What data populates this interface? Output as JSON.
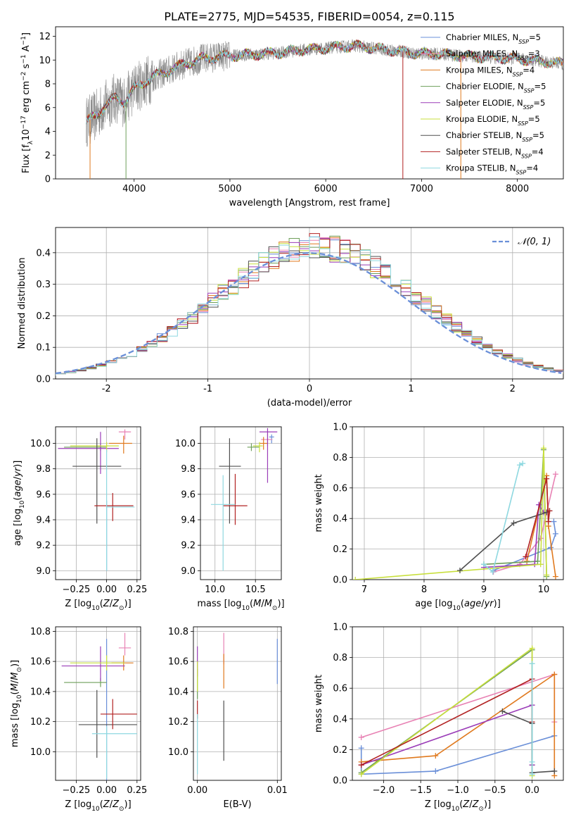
{
  "figure_title": "PLATE=2775, MJD=54535, FIBERID=0054, z=0.115",
  "colors": {
    "chabrier_miles": "#6a8fd8",
    "salpeter_miles": "#e882b4",
    "kroupa_miles": "#e07a1f",
    "chabrier_elodie": "#6e9f5a",
    "salpeter_elodie": "#9b3db8",
    "kroupa_elodie": "#c8df3c",
    "chabrier_stelib": "#505050",
    "salpeter_stelib": "#b22222",
    "kroupa_stelib": "#8ed8e0",
    "gaussian": "#6a8fd8",
    "grid": "#b0b0b0"
  },
  "chart_data": [
    {
      "id": "spectrum",
      "type": "line",
      "title": "PLATE=2775, MJD=54535, FIBERID=0054, z=0.115",
      "xlabel": "wavelength [Angstrom, rest frame]",
      "ylabel": "Flux [f_λ 10^-17 erg cm^-2 s^-1 A^-1]",
      "xlim": [
        3180,
        8480
      ],
      "ylim": [
        0,
        12.8
      ],
      "xticks": [
        4000,
        5000,
        6000,
        7000,
        8000
      ],
      "yticks": [
        0,
        2,
        4,
        6,
        8,
        10,
        12
      ],
      "grid": false,
      "legend_position": "right",
      "data_range": [
        3500,
        8480
      ],
      "continuum_knots": {
        "x": [
          3500,
          3600,
          3700,
          3800,
          3900,
          4000,
          4100,
          4200,
          4300,
          4500,
          4700,
          4900,
          5100,
          5300,
          5500,
          5700,
          6000,
          6300,
          6600,
          6900,
          7200,
          7500,
          8000,
          8480
        ],
        "y": [
          4.8,
          5.3,
          6.2,
          6.8,
          6.5,
          7.6,
          8.1,
          8.6,
          8.9,
          9.6,
          10.1,
          10.3,
          10.4,
          10.5,
          10.6,
          10.8,
          11.0,
          11.2,
          10.9,
          10.6,
          10.5,
          10.3,
          10.1,
          9.7
        ]
      },
      "legend": [
        {
          "label": "Chabrier MILES, N",
          "sub": "SSP",
          "suffix": "=5",
          "color": "#6a8fd8"
        },
        {
          "label": "Salpeter MILES, N",
          "sub": "SSP",
          "suffix": "=3",
          "color": "#e882b4"
        },
        {
          "label": "Kroupa MILES, N",
          "sub": "SSP",
          "suffix": "=4",
          "color": "#e07a1f"
        },
        {
          "label": "Chabrier ELODIE, N",
          "sub": "SSP",
          "suffix": "=5",
          "color": "#6e9f5a"
        },
        {
          "label": "Salpeter ELODIE, N",
          "sub": "SSP",
          "suffix": "=5",
          "color": "#9b3db8"
        },
        {
          "label": "Kroupa ELODIE, N",
          "sub": "SSP",
          "suffix": "=5",
          "color": "#c8df3c"
        },
        {
          "label": "Chabrier STELIB, N",
          "sub": "SSP",
          "suffix": "=5",
          "color": "#505050"
        },
        {
          "label": "Salpeter STELIB, N",
          "sub": "SSP",
          "suffix": "=4",
          "color": "#b22222"
        },
        {
          "label": "Kroupa STELIB, N",
          "sub": "SSP",
          "suffix": "=4",
          "color": "#8ed8e0"
        }
      ]
    },
    {
      "id": "residuals",
      "type": "histogram",
      "xlabel": "(data-model)/error",
      "ylabel": "Normed distribution",
      "xlim": [
        -2.5,
        2.5
      ],
      "ylim": [
        0,
        0.48
      ],
      "xticks": [
        -2,
        -1,
        0,
        1,
        2
      ],
      "yticks": [
        0.0,
        0.1,
        0.2,
        0.3,
        0.4
      ],
      "grid": true,
      "legend_position": "top-right",
      "gaussian_label": "𝒩(0, 1)"
    },
    {
      "id": "age_vs_Z",
      "type": "errorbar",
      "xlabel": "Z [log10(Z/Z⊙)]",
      "ylabel": "age [log10(age/yr)]",
      "xlim": [
        -0.42,
        0.28
      ],
      "ylim": [
        8.93,
        10.13
      ],
      "xticks": [
        -0.25,
        0.0,
        0.25
      ],
      "xticklabels": [
        "−0.25",
        "0.00",
        "0.25"
      ],
      "yticks": [
        9.0,
        9.2,
        9.4,
        9.6,
        9.8,
        10.0
      ],
      "grid": true,
      "points": [
        {
          "x": 0.0,
          "y": 9.5,
          "xerr": [
            0.0,
            0.0
          ],
          "yerr": [
            0.5,
            0.05
          ],
          "color": "#6a8fd8"
        },
        {
          "x": 0.15,
          "y": 10.09,
          "xerr": [
            0.05,
            0.05
          ],
          "yerr": [
            0.06,
            0.02
          ],
          "color": "#e882b4"
        },
        {
          "x": 0.14,
          "y": 10.0,
          "xerr": [
            0.12,
            0.07
          ],
          "yerr": [
            0.08,
            0.06
          ],
          "color": "#e07a1f"
        },
        {
          "x": -0.05,
          "y": 9.97,
          "xerr": [
            0.3,
            0.05
          ],
          "yerr": [
            0.03,
            0.03
          ],
          "color": "#6e9f5a"
        },
        {
          "x": -0.05,
          "y": 9.96,
          "xerr": [
            0.35,
            0.15
          ],
          "yerr": [
            0.2,
            0.13
          ],
          "color": "#9b3db8"
        },
        {
          "x": 0.0,
          "y": 9.98,
          "xerr": [
            0.3,
            0.1
          ],
          "yerr": [
            0.05,
            0.03
          ],
          "color": "#c8df3c"
        },
        {
          "x": -0.08,
          "y": 9.82,
          "xerr": [
            0.2,
            0.2
          ],
          "yerr": [
            0.45,
            0.22
          ],
          "color": "#505050"
        },
        {
          "x": 0.05,
          "y": 9.51,
          "xerr": [
            0.15,
            0.17
          ],
          "yerr": [
            0.12,
            0.1
          ],
          "color": "#b22222"
        },
        {
          "x": 0.0,
          "y": 9.5,
          "xerr": [
            0.0,
            0.23
          ],
          "yerr": [
            0.5,
            0.45
          ],
          "color": "#8ed8e0"
        }
      ]
    },
    {
      "id": "age_vs_mass",
      "type": "errorbar",
      "xlabel": "mass [log10(M/M⊙)]",
      "ylabel": "",
      "xlim": [
        9.82,
        10.82
      ],
      "ylim": [
        8.93,
        10.13
      ],
      "xticks": [
        10.0,
        10.5
      ],
      "xticklabels": [
        "10.0",
        "10.5"
      ],
      "yticks": [
        9.0,
        9.2,
        9.4,
        9.6,
        9.8,
        10.0
      ],
      "grid": true,
      "points": [
        {
          "x": 10.7,
          "y": 10.05,
          "xerr": [
            0.03,
            0.03
          ],
          "yerr": [
            0.05,
            0.02
          ],
          "color": "#6a8fd8"
        },
        {
          "x": 10.65,
          "y": 10.03,
          "xerr": [
            0.08,
            0.06
          ],
          "yerr": [
            0.05,
            0.05
          ],
          "color": "#e882b4"
        },
        {
          "x": 10.6,
          "y": 10.0,
          "xerr": [
            0.05,
            0.05
          ],
          "yerr": [
            0.05,
            0.05
          ],
          "color": "#e07a1f"
        },
        {
          "x": 10.45,
          "y": 9.97,
          "xerr": [
            0.05,
            0.1
          ],
          "yerr": [
            0.03,
            0.03
          ],
          "color": "#6e9f5a"
        },
        {
          "x": 10.65,
          "y": 10.09,
          "xerr": [
            0.1,
            0.12
          ],
          "yerr": [
            0.4,
            0.03
          ],
          "color": "#9b3db8"
        },
        {
          "x": 10.55,
          "y": 9.98,
          "xerr": [
            0.08,
            0.04
          ],
          "yerr": [
            0.05,
            0.03
          ],
          "color": "#c8df3c"
        },
        {
          "x": 10.18,
          "y": 9.82,
          "xerr": [
            0.13,
            0.14
          ],
          "yerr": [
            0.45,
            0.22
          ],
          "color": "#505050"
        },
        {
          "x": 10.25,
          "y": 9.51,
          "xerr": [
            0.15,
            0.15
          ],
          "yerr": [
            0.15,
            0.25
          ],
          "color": "#b22222"
        },
        {
          "x": 10.1,
          "y": 9.52,
          "xerr": [
            0.15,
            0.15
          ],
          "yerr": [
            0.52,
            0.23
          ],
          "color": "#8ed8e0"
        }
      ]
    },
    {
      "id": "mass_weight_vs_age",
      "type": "line",
      "xlabel": "age [log10(age/yr)]",
      "ylabel": "mass weight",
      "xlim": [
        6.8,
        10.33
      ],
      "ylim": [
        0,
        1.0
      ],
      "xticks": [
        7,
        8,
        9,
        10
      ],
      "yticks": [
        0.0,
        0.2,
        0.4,
        0.6,
        0.8,
        1.0
      ],
      "grid": true,
      "series": [
        {
          "color": "#6a8fd8",
          "x": [
            9.16,
            10.12,
            10.2,
            10.17
          ],
          "y": [
            0.06,
            0.21,
            0.3,
            0.38
          ]
        },
        {
          "color": "#e882b4",
          "x": [
            9.16,
            9.6,
            9.95,
            10.2
          ],
          "y": [
            0.05,
            0.1,
            0.27,
            0.69
          ]
        },
        {
          "color": "#e07a1f",
          "x": [
            9.72,
            10.05,
            10.08,
            10.2
          ],
          "y": [
            0.12,
            0.68,
            0.35,
            0.02
          ]
        },
        {
          "color": "#6e9f5a",
          "x": [
            9.0,
            9.9,
            10.0,
            10.05
          ],
          "y": [
            0.1,
            0.12,
            0.85,
            0.02
          ]
        },
        {
          "color": "#9b3db8",
          "x": [
            9.0,
            9.85,
            9.92,
            10.0
          ],
          "y": [
            0.08,
            0.1,
            0.49,
            0.44
          ]
        },
        {
          "color": "#c8df3c",
          "x": [
            6.85,
            9.95,
            10.0,
            10.05
          ],
          "y": [
            0.0,
            0.1,
            0.86,
            0.03
          ]
        },
        {
          "color": "#505050",
          "x": [
            8.6,
            9.5,
            10.05,
            10.1
          ],
          "y": [
            0.06,
            0.37,
            0.44,
            0.45
          ]
        },
        {
          "color": "#b22222",
          "x": [
            9.7,
            10.05,
            10.08,
            10.1
          ],
          "y": [
            0.15,
            0.66,
            0.38,
            0.45
          ]
        },
        {
          "color": "#8ed8e0",
          "x": [
            9.0,
            9.15,
            9.6,
            9.65
          ],
          "y": [
            0.1,
            0.05,
            0.75,
            0.76
          ]
        }
      ]
    },
    {
      "id": "mass_vs_Z",
      "type": "errorbar",
      "xlabel": "Z [log10(Z/Z⊙)]",
      "ylabel": "mass [log10(M/M⊙)]",
      "xlim": [
        -0.42,
        0.28
      ],
      "ylim": [
        9.81,
        10.83
      ],
      "xticks": [
        -0.25,
        0.0,
        0.25
      ],
      "xticklabels": [
        "−0.25",
        "0.00",
        "0.25"
      ],
      "yticks": [
        10.0,
        10.2,
        10.4,
        10.6,
        10.8
      ],
      "grid": true,
      "points": [
        {
          "x": 0.0,
          "y": 10.15,
          "xerr": [
            0.0,
            0.0
          ],
          "yerr": [
            0.35,
            0.6
          ],
          "color": "#6a8fd8"
        },
        {
          "x": 0.15,
          "y": 10.69,
          "xerr": [
            0.05,
            0.05
          ],
          "yerr": [
            0.05,
            0.1
          ],
          "color": "#e882b4"
        },
        {
          "x": 0.14,
          "y": 10.59,
          "xerr": [
            0.1,
            0.08
          ],
          "yerr": [
            0.05,
            0.05
          ],
          "color": "#e07a1f"
        },
        {
          "x": -0.05,
          "y": 10.46,
          "xerr": [
            0.3,
            0.05
          ],
          "yerr": [
            0.03,
            0.03
          ],
          "color": "#6e9f5a"
        },
        {
          "x": -0.05,
          "y": 10.57,
          "xerr": [
            0.32,
            0.2
          ],
          "yerr": [
            0.1,
            0.13
          ],
          "color": "#9b3db8"
        },
        {
          "x": 0.0,
          "y": 10.59,
          "xerr": [
            0.3,
            0.15
          ],
          "yerr": [
            0.05,
            0.05
          ],
          "color": "#c8df3c"
        },
        {
          "x": -0.08,
          "y": 10.18,
          "xerr": [
            0.15,
            0.33
          ],
          "yerr": [
            0.22,
            0.23
          ],
          "color": "#505050"
        },
        {
          "x": 0.05,
          "y": 10.25,
          "xerr": [
            0.1,
            0.2
          ],
          "yerr": [
            0.1,
            0.1
          ],
          "color": "#b22222"
        },
        {
          "x": 0.0,
          "y": 10.12,
          "xerr": [
            0.12,
            0.25
          ],
          "yerr": [
            0.3,
            0.05
          ],
          "color": "#8ed8e0"
        }
      ]
    },
    {
      "id": "mass_vs_EBV",
      "type": "errorbar",
      "xlabel": "E(B-V)",
      "ylabel": "",
      "xlim": [
        -0.0005,
        0.0105
      ],
      "ylim": [
        9.81,
        10.83
      ],
      "xticks": [
        0.0,
        0.01
      ],
      "xticklabels": [
        "0.00",
        "0.01"
      ],
      "yticks": [
        10.0,
        10.2,
        10.4,
        10.6,
        10.8
      ],
      "grid": true,
      "points": [
        {
          "x": 0.01,
          "y": 10.6,
          "xerr": [
            0,
            0
          ],
          "yerr": [
            0.15,
            0.15
          ],
          "color": "#6a8fd8"
        },
        {
          "x": 0.0033,
          "y": 10.68,
          "xerr": [
            0,
            0
          ],
          "yerr": [
            0.1,
            0.11
          ],
          "color": "#e882b4"
        },
        {
          "x": 0.0033,
          "y": 10.55,
          "xerr": [
            0,
            0
          ],
          "yerr": [
            0.13,
            0.1
          ],
          "color": "#e07a1f"
        },
        {
          "x": 0.0,
          "y": 10.45,
          "xerr": [
            0,
            0
          ],
          "yerr": [
            0.1,
            0.1
          ],
          "color": "#6e9f5a"
        },
        {
          "x": 0.0,
          "y": 10.6,
          "xerr": [
            0,
            0
          ],
          "yerr": [
            0.1,
            0.1
          ],
          "color": "#9b3db8"
        },
        {
          "x": 0.0,
          "y": 10.5,
          "xerr": [
            0,
            0
          ],
          "yerr": [
            0.1,
            0.1
          ],
          "color": "#c8df3c"
        },
        {
          "x": 0.0033,
          "y": 10.14,
          "xerr": [
            0,
            0
          ],
          "yerr": [
            0.2,
            0.2
          ],
          "color": "#505050"
        },
        {
          "x": 0.0,
          "y": 10.28,
          "xerr": [
            0,
            0
          ],
          "yerr": [
            0.06,
            0.06
          ],
          "color": "#b22222"
        },
        {
          "x": 0.0,
          "y": 10.05,
          "xerr": [
            0,
            0
          ],
          "yerr": [
            0.2,
            0.2
          ],
          "color": "#8ed8e0"
        }
      ]
    },
    {
      "id": "mass_weight_vs_Z",
      "type": "line",
      "xlabel": "Z [log10(Z/Z⊙)]",
      "ylabel": "mass weight",
      "xlim": [
        -2.42,
        0.42
      ],
      "ylim": [
        0,
        1.0
      ],
      "xticks": [
        -2.0,
        -1.5,
        -1.0,
        -0.5,
        0.0
      ],
      "xticklabels": [
        "−2.0",
        "−1.5",
        "−1.0",
        "−0.5",
        "0.0"
      ],
      "yticks": [
        0.0,
        0.2,
        0.4,
        0.6,
        0.8,
        1.0
      ],
      "grid": true,
      "series": [
        {
          "color": "#6a8fd8",
          "x": [
            -2.3,
            -2.3,
            -1.3,
            0.3
          ],
          "y": [
            0.21,
            0.04,
            0.06,
            0.29
          ]
        },
        {
          "color": "#e882b4",
          "x": [
            -2.3,
            0.3,
            0.3
          ],
          "y": [
            0.28,
            0.69,
            0.38
          ]
        },
        {
          "color": "#e07a1f",
          "x": [
            -2.3,
            -1.3,
            0.3,
            0.3
          ],
          "y": [
            0.12,
            0.16,
            0.69,
            0.03
          ]
        },
        {
          "color": "#6e9f5a",
          "x": [
            -2.3,
            0.0,
            0.0
          ],
          "y": [
            0.05,
            0.85,
            0.1
          ]
        },
        {
          "color": "#9b3db8",
          "x": [
            -2.3,
            0.0,
            0.0
          ],
          "y": [
            0.1,
            0.49,
            0.1
          ]
        },
        {
          "color": "#c8df3c",
          "x": [
            -2.3,
            0.0,
            0.0
          ],
          "y": [
            0.04,
            0.86,
            0.03
          ]
        },
        {
          "color": "#505050",
          "x": [
            -0.4,
            0.0,
            0.0,
            0.3
          ],
          "y": [
            0.45,
            0.37,
            0.05,
            0.06
          ]
        },
        {
          "color": "#b22222",
          "x": [
            -2.3,
            0.0,
            0.0
          ],
          "y": [
            0.1,
            0.66,
            0.38
          ]
        },
        {
          "color": "#8ed8e0",
          "x": [
            0.0,
            0.0,
            0.0
          ],
          "y": [
            0.76,
            0.12,
            0.04
          ]
        }
      ]
    }
  ]
}
